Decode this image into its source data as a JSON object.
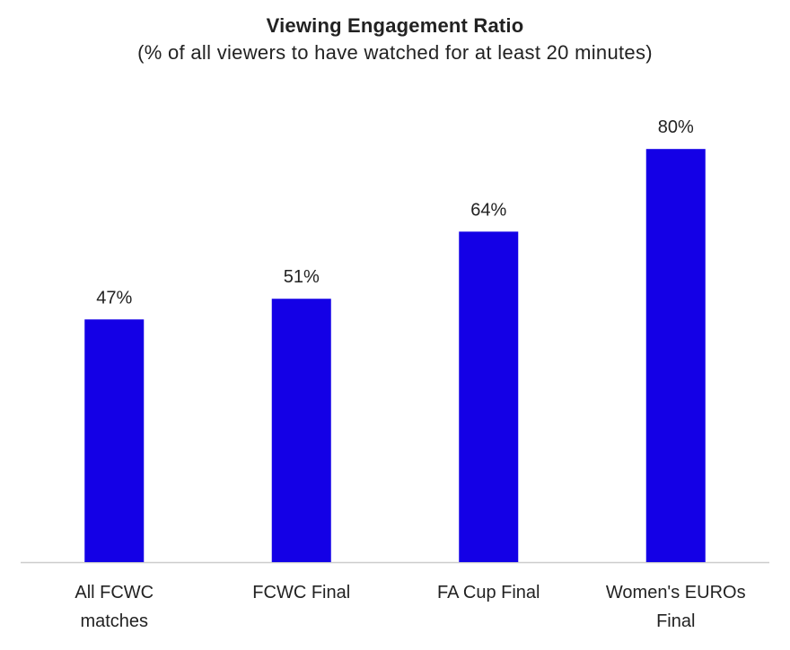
{
  "chart_data": {
    "type": "bar",
    "title": "Viewing Engagement Ratio",
    "subtitle": "(% of all viewers to have watched for at least 20 minutes)",
    "categories": [
      [
        "All FCWC",
        "matches"
      ],
      [
        "FCWC Final"
      ],
      [
        "FA Cup Final"
      ],
      [
        "Women's EUROs",
        "Final"
      ]
    ],
    "values": [
      47,
      51,
      64,
      80
    ],
    "data_labels": [
      "47%",
      "51%",
      "64%",
      "80%"
    ],
    "ylim": [
      0,
      100
    ],
    "grid": false,
    "bar_color": "#1400e6",
    "axis_color": "#cccccc"
  }
}
